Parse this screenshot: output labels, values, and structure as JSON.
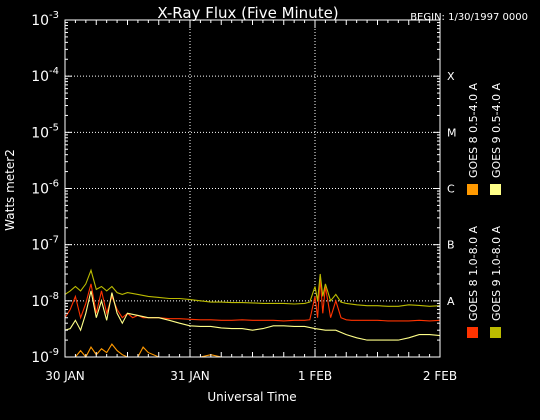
{
  "chart_data": {
    "type": "line",
    "title": "X-Ray Flux (Five Minute)",
    "begin_label": "BEGIN: 1/30/1997 0000",
    "ylabel": "Watts meter2",
    "xlabel": "Universal Time",
    "y_scale": "log",
    "ylim": [
      1e-09,
      0.001
    ],
    "y_ticks": [
      {
        "value": 1e-09,
        "base": "10",
        "exp": "-9"
      },
      {
        "value": 1e-08,
        "base": "10",
        "exp": "-8"
      },
      {
        "value": 1e-07,
        "base": "10",
        "exp": "-7"
      },
      {
        "value": 1e-06,
        "base": "10",
        "exp": "-6"
      },
      {
        "value": 1e-05,
        "base": "10",
        "exp": "-5"
      },
      {
        "value": 0.0001,
        "base": "10",
        "exp": "-4"
      },
      {
        "value": 0.001,
        "base": "10",
        "exp": "-3"
      }
    ],
    "xlim": [
      0,
      72
    ],
    "x_ticks": [
      {
        "hours": 0,
        "label": "30 JAN"
      },
      {
        "hours": 24,
        "label": "31 JAN"
      },
      {
        "hours": 48,
        "label": "1 FEB"
      },
      {
        "hours": 72,
        "label": "2 FEB"
      }
    ],
    "flare_classes": [
      {
        "label": "A",
        "value": 1e-08
      },
      {
        "label": "B",
        "value": 1e-07
      },
      {
        "label": "C",
        "value": 1e-06
      },
      {
        "label": "M",
        "value": 1e-05
      },
      {
        "label": "X",
        "value": 0.0001
      }
    ],
    "grid": "dotted at flare-class levels and day boundaries",
    "legend_position": "right, rotated",
    "series": [
      {
        "name": "GOES 8 1.0-8.0 A",
        "color": "#ff3300",
        "x": [
          0,
          1,
          2,
          3,
          4,
          5,
          6,
          7,
          8,
          9,
          10,
          11,
          12,
          13,
          14,
          15,
          16,
          18,
          20,
          22,
          24,
          26,
          28,
          30,
          32,
          34,
          36,
          38,
          40,
          42,
          44,
          46,
          47,
          48,
          48.5,
          49,
          49.5,
          50,
          51,
          52,
          53,
          54,
          55,
          56,
          58,
          60,
          62,
          64,
          66,
          68,
          70,
          72
        ],
        "y": [
          5e-09,
          7e-09,
          1.2e-08,
          5e-09,
          9e-09,
          2e-08,
          6e-09,
          1.5e-08,
          6e-09,
          1.2e-08,
          7e-09,
          5e-09,
          6e-09,
          5e-09,
          5.5e-09,
          5e-09,
          5e-09,
          5e-09,
          4.8e-09,
          4.8e-09,
          4.7e-09,
          4.6e-09,
          4.6e-09,
          4.5e-09,
          4.5e-09,
          4.6e-09,
          4.5e-09,
          4.5e-09,
          4.5e-09,
          4.4e-09,
          4.5e-09,
          4.5e-09,
          4.6e-09,
          1.2e-08,
          5e-09,
          2.5e-08,
          6e-09,
          1.8e-08,
          5e-09,
          1e-08,
          5e-09,
          4.6e-09,
          4.5e-09,
          4.5e-09,
          4.5e-09,
          4.5e-09,
          4.4e-09,
          4.4e-09,
          4.4e-09,
          4.5e-09,
          4.4e-09,
          4.5e-09
        ]
      },
      {
        "name": "GOES 8 0.5-4.0 A",
        "color": "#ff9900",
        "x": [
          0,
          2,
          3,
          4,
          5,
          6,
          7,
          8,
          9,
          10,
          11,
          12,
          14,
          15,
          16,
          18,
          20,
          22,
          24,
          26,
          28,
          30,
          32,
          34,
          36,
          40,
          44,
          47,
          48,
          48.5,
          49,
          50,
          51,
          52,
          54,
          56,
          58,
          60,
          62,
          64,
          66,
          68,
          70,
          72
        ],
        "y": [
          1e-09,
          1e-09,
          1.3e-09,
          1e-09,
          1.5e-09,
          1.1e-09,
          1.4e-09,
          1.2e-09,
          1.7e-09,
          1.3e-09,
          1.1e-09,
          1e-09,
          1e-09,
          1.5e-09,
          1.2e-09,
          1e-09,
          1e-09,
          1e-09,
          1e-09,
          1e-09,
          1.1e-09,
          1e-09,
          1e-09,
          1e-09,
          1e-09,
          1e-09,
          1e-09,
          1e-09,
          1e-09,
          1e-09,
          1e-09,
          1e-09,
          1e-09,
          1e-09,
          1e-09,
          1e-09,
          1e-09,
          1e-09,
          1e-09,
          1e-09,
          1e-09,
          1e-09,
          1e-09,
          1e-09
        ]
      },
      {
        "name": "GOES 9 1.0-8.0 A",
        "color": "#bbbb00",
        "x": [
          0,
          1,
          2,
          3,
          4,
          5,
          6,
          7,
          8,
          9,
          10,
          11,
          12,
          14,
          16,
          18,
          20,
          22,
          24,
          26,
          28,
          30,
          32,
          34,
          36,
          38,
          40,
          42,
          44,
          46,
          47,
          48,
          48.5,
          49,
          49.5,
          50,
          51,
          52,
          53,
          54,
          56,
          58,
          60,
          62,
          64,
          66,
          68,
          70,
          72
        ],
        "y": [
          1.3e-08,
          1.5e-08,
          1.8e-08,
          1.5e-08,
          2e-08,
          3.5e-08,
          1.6e-08,
          1.8e-08,
          1.5e-08,
          1.8e-08,
          1.4e-08,
          1.3e-08,
          1.4e-08,
          1.3e-08,
          1.2e-08,
          1.15e-08,
          1.1e-08,
          1.1e-08,
          1.05e-08,
          1e-08,
          9.5e-09,
          9.5e-09,
          9.3e-09,
          9.3e-09,
          9.2e-09,
          9e-09,
          9e-09,
          9e-09,
          8.8e-09,
          9e-09,
          9.5e-09,
          1.8e-08,
          1e-08,
          3e-08,
          1.2e-08,
          2e-08,
          1e-08,
          1.3e-08,
          9.5e-09,
          9e-09,
          8.5e-09,
          8.2e-09,
          8.2e-09,
          8e-09,
          8e-09,
          8.5e-09,
          8.3e-09,
          8e-09,
          8.2e-09
        ]
      },
      {
        "name": "GOES 9 0.5-4.0 A",
        "color": "#ffff88",
        "x": [
          0,
          1,
          2,
          3,
          4,
          5,
          6,
          7,
          8,
          9,
          10,
          11,
          12,
          14,
          16,
          18,
          20,
          22,
          24,
          26,
          28,
          30,
          32,
          34,
          36,
          38,
          40,
          42,
          44,
          46,
          48,
          50,
          52,
          54,
          56,
          58,
          60,
          62,
          64,
          66,
          68,
          70,
          72
        ],
        "y": [
          3e-09,
          3.2e-09,
          4.5e-09,
          3e-09,
          6e-09,
          1.5e-08,
          5e-09,
          1e-08,
          4.5e-09,
          1.4e-08,
          6e-09,
          4e-09,
          6e-09,
          5.5e-09,
          5e-09,
          5e-09,
          4.5e-09,
          4e-09,
          3.6e-09,
          3.5e-09,
          3.5e-09,
          3.3e-09,
          3.2e-09,
          3.2e-09,
          3e-09,
          3.2e-09,
          3.6e-09,
          3.6e-09,
          3.5e-09,
          3.5e-09,
          3.2e-09,
          3e-09,
          3e-09,
          2.5e-09,
          2.2e-09,
          2e-09,
          2e-09,
          2e-09,
          2e-09,
          2.2e-09,
          2.5e-09,
          2.5e-09,
          2.4e-09
        ]
      }
    ]
  }
}
